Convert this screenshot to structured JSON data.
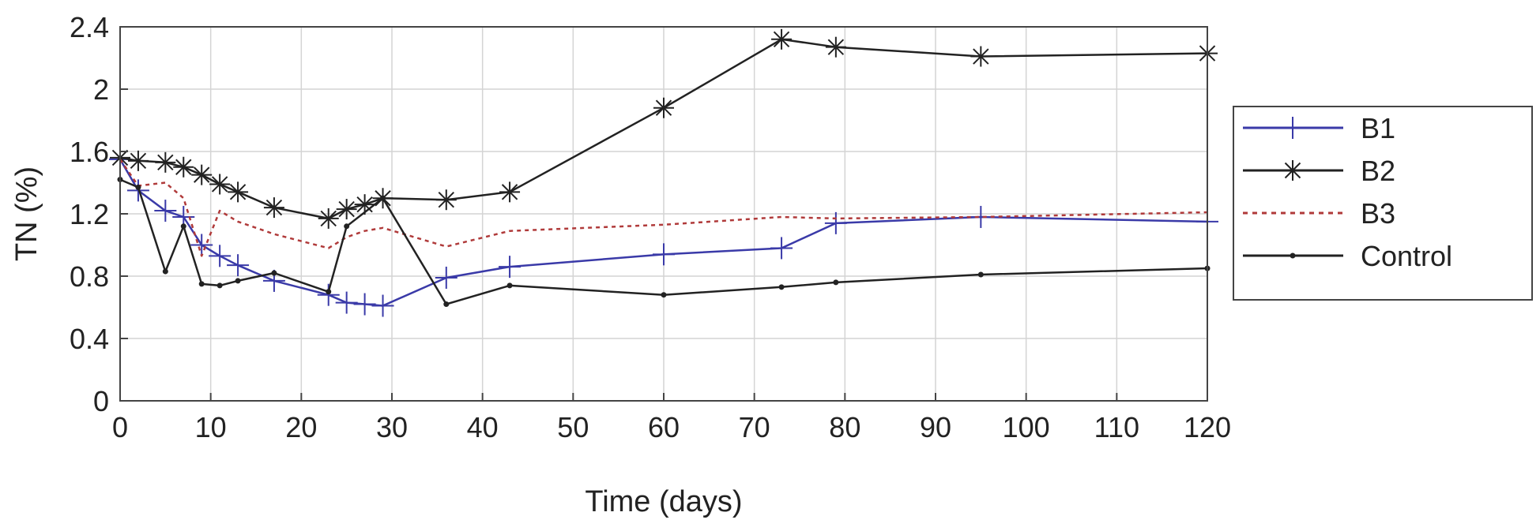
{
  "chart_data": {
    "type": "line",
    "xlabel": "Time (days)",
    "ylabel": "TN (%)",
    "xlim": [
      0,
      120
    ],
    "ylim": [
      0,
      2.4
    ],
    "xticks": [
      0,
      10,
      20,
      30,
      40,
      50,
      60,
      70,
      80,
      90,
      100,
      110,
      120
    ],
    "yticks": [
      0,
      0.4,
      0.8,
      1.2,
      1.6,
      2,
      2.4
    ],
    "xtick_labels": [
      "0",
      "10",
      "20",
      "30",
      "40",
      "50",
      "60",
      "70",
      "80",
      "90",
      "100",
      "110",
      "120"
    ],
    "ytick_labels": [
      "0",
      "0.4",
      "0.8",
      "1.2",
      "1.6",
      "2",
      "2.4"
    ],
    "grid": true,
    "legend_position": "right-outside",
    "series": [
      {
        "name": "B1",
        "color": "#3a3aa8",
        "line_style": "solid",
        "marker": "plus",
        "x": [
          0,
          2,
          5,
          7,
          9,
          11,
          13,
          17,
          23,
          25,
          27,
          29,
          36,
          43,
          60,
          73,
          79,
          95,
          120
        ],
        "y": [
          1.55,
          1.35,
          1.22,
          1.18,
          1.0,
          0.93,
          0.87,
          0.77,
          0.68,
          0.63,
          0.62,
          0.61,
          0.79,
          0.86,
          0.94,
          0.98,
          1.14,
          1.18,
          1.15
        ]
      },
      {
        "name": "B2",
        "color": "#222222",
        "line_style": "solid",
        "marker": "asterisk",
        "x": [
          0,
          2,
          5,
          7,
          9,
          11,
          13,
          17,
          23,
          25,
          27,
          29,
          36,
          43,
          60,
          73,
          79,
          95,
          120
        ],
        "y": [
          1.56,
          1.54,
          1.53,
          1.5,
          1.45,
          1.39,
          1.34,
          1.24,
          1.17,
          1.23,
          1.26,
          1.3,
          1.29,
          1.34,
          1.88,
          2.32,
          2.27,
          2.21,
          2.23
        ]
      },
      {
        "name": "B3",
        "color": "#b03a3a",
        "line_style": "dotted",
        "marker": "none",
        "x": [
          0,
          2,
          5,
          7,
          9,
          11,
          13,
          17,
          23,
          25,
          27,
          29,
          36,
          43,
          60,
          73,
          79,
          95,
          120
        ],
        "y": [
          1.55,
          1.38,
          1.4,
          1.3,
          0.93,
          1.22,
          1.15,
          1.07,
          0.98,
          1.05,
          1.09,
          1.11,
          0.99,
          1.09,
          1.13,
          1.18,
          1.17,
          1.18,
          1.21
        ]
      },
      {
        "name": "Control",
        "color": "#222222",
        "line_style": "solid",
        "marker": "dot",
        "x": [
          0,
          2,
          5,
          7,
          9,
          11,
          13,
          17,
          23,
          25,
          29,
          36,
          43,
          60,
          73,
          79,
          95,
          120
        ],
        "y": [
          1.42,
          1.37,
          0.83,
          1.12,
          0.75,
          0.74,
          0.77,
          0.82,
          0.7,
          1.12,
          1.3,
          0.62,
          0.74,
          0.68,
          0.73,
          0.76,
          0.81,
          0.85
        ]
      }
    ]
  }
}
